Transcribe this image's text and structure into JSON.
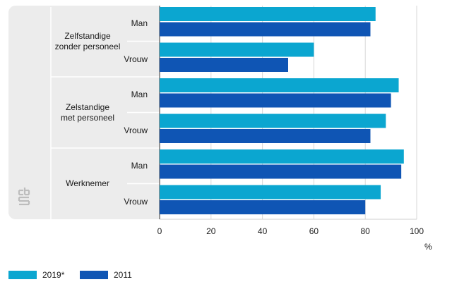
{
  "chart_data": {
    "type": "bar",
    "orientation": "horizontal",
    "groups": [
      {
        "label": "Zelfstandige\nzonder personeel",
        "categories": [
          "Man",
          "Vrouw"
        ]
      },
      {
        "label": "Zelstandige\nmet personeel",
        "categories": [
          "Man",
          "Vrouw"
        ]
      },
      {
        "label": "Werknemer",
        "categories": [
          "Man",
          "Vrouw"
        ]
      }
    ],
    "series": [
      {
        "name": "2019*",
        "color": "#0ba6d0",
        "values": [
          84,
          60,
          93,
          88,
          95,
          86
        ]
      },
      {
        "name": "2011",
        "color": "#0f55b4",
        "values": [
          82,
          50,
          90,
          82,
          94,
          80
        ]
      }
    ],
    "x_ticks": [
      "0",
      "20",
      "40",
      "60",
      "80",
      "100"
    ],
    "xlim": [
      0,
      100
    ],
    "unit": "%",
    "grid": true,
    "legend": "bottom-left"
  },
  "logo": {
    "name": "cbs-logo",
    "text": "cbs"
  }
}
